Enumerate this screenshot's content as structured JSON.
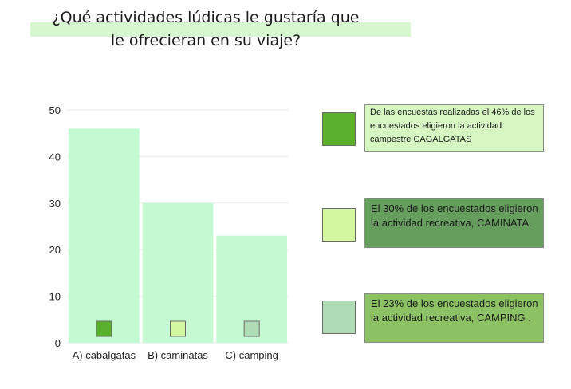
{
  "header": {
    "title": "¿Qué actividades lúdicas le gustaría que le ofrecieran en su viaje?"
  },
  "chart_data": {
    "type": "bar",
    "categories": [
      "A) cabalgatas",
      "B) caminatas",
      "C) camping"
    ],
    "values": [
      46,
      30,
      23
    ],
    "ylim": [
      0,
      50
    ],
    "yticks": [
      0,
      10,
      20,
      30,
      40,
      50
    ],
    "grid": true,
    "bar_color": "#c4f9d1",
    "marker_colors": [
      "#5aaf2c",
      "#d2f7a0",
      "#aedcb4"
    ]
  },
  "legend": {
    "placement": "right",
    "items": [
      {
        "color": "#5aaf2c",
        "text": "De las encuestas realizadas el 46% de los encuestados eligieron la actividad campestre  CAGALGATAS"
      },
      {
        "color": "#d2f7a0",
        "text": "El 30% de los encuestados eligieron la actividad recreativa, CAMINATA."
      },
      {
        "color": "#aedcb4",
        "text": "El 23% de los encuestados eligieron la actividad recreativa, CAMPING ."
      }
    ]
  }
}
